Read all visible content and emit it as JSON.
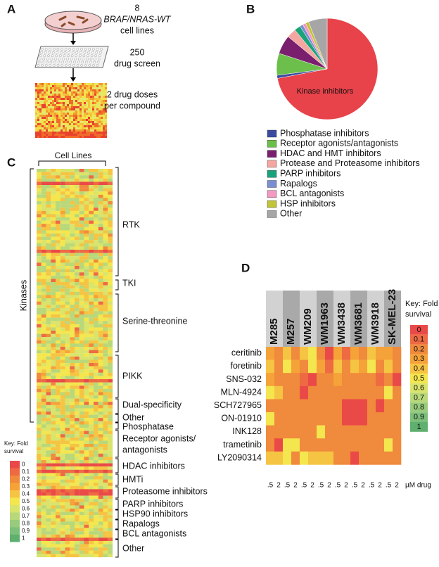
{
  "figure": {
    "panel_a": {
      "label": "A",
      "steps": [
        [
          "8",
          "BRAF/NRAS-WT",
          "cell lines"
        ],
        [
          "250",
          "drug screen"
        ],
        [
          "2 drug doses",
          "per compound"
        ]
      ]
    },
    "panel_b": {
      "label": "B"
    },
    "panel_c": {
      "label": "C",
      "columns_label": "Cell Lines",
      "kinases_label": "Kinases",
      "groups": [
        [
          "RTK"
        ],
        [
          "TKI"
        ],
        [
          "Serine-threonine"
        ],
        [
          "PIKK"
        ],
        [
          "Dual-specificity"
        ],
        [
          "Other"
        ],
        [
          "Phosphatase"
        ],
        [
          "Receptor agonists/",
          "antagonists"
        ],
        [
          "HDAC inhibitors"
        ],
        [
          "HMTi"
        ],
        [
          "Proteasome inhibitors"
        ],
        [
          "PARP inhibitors"
        ],
        [
          "HSP90 inhibitors"
        ],
        [
          "Rapalogs"
        ],
        [
          "BCL antagonists"
        ],
        [
          "Other"
        ]
      ]
    },
    "panel_d": {
      "label": "D"
    }
  },
  "chart_data": [
    {
      "type": "pie",
      "categories": [
        "Kinase inhibitors",
        "Phosphatase inhibitors",
        "Receptor agonists/antagonists",
        "HDAC and HMT inhibitors",
        "Protease and Proteasome inhibitors",
        "PARP inhibitors",
        "Rapalogs",
        "BCL antagonists",
        "HSP inhibitors",
        "Other"
      ],
      "values": [
        72,
        1,
        7,
        6,
        3,
        2,
        1,
        1,
        1,
        6
      ],
      "colors": [
        "#e8434a",
        "#3b4ba0",
        "#6cbf4a",
        "#7a1f6e",
        "#f4a7a0",
        "#1aa37a",
        "#7b8fd0",
        "#f29ac0",
        "#c2c43a",
        "#a6a6a6"
      ]
    },
    {
      "type": "heatmap",
      "columns": [
        "M285",
        "M257",
        "WM209",
        "WM1963",
        "WM3438",
        "WM3681",
        "WM3918",
        "SK-MEL-23"
      ],
      "sub_columns": [
        ".5",
        "2"
      ],
      "x_label": "µM drug",
      "rows": [
        "ceritinib",
        "foretinib",
        "SNS-032",
        "MLN-4924",
        "SCH727965",
        "ON-01910",
        "INK128",
        "trametinib",
        "LY2090314"
      ],
      "values": [
        [
          0.3,
          0.2,
          0.4,
          0.2,
          0.4,
          0.5,
          0.2,
          0,
          0.3,
          0.1,
          0.3,
          0.2,
          0.4,
          0.3,
          0.3,
          0.2
        ],
        [
          0.4,
          0.2,
          0.5,
          0.3,
          0.2,
          0.5,
          0.3,
          0.1,
          0.4,
          0.2,
          0.4,
          0.3,
          0.5,
          0.2,
          0.4,
          0.2
        ],
        [
          0.3,
          0.2,
          0.2,
          0.2,
          0.1,
          0,
          0.2,
          0.2,
          0.3,
          0.2,
          0.2,
          0.2,
          0.2,
          0.1,
          0.2,
          0
        ],
        [
          0.5,
          0.4,
          0.2,
          0.2,
          0,
          0.2,
          0.2,
          0.2,
          0.2,
          0.2,
          0.2,
          0.2,
          0.2,
          0.2,
          0.5,
          0.2
        ],
        [
          0.2,
          0.2,
          0.2,
          0.2,
          0.2,
          0.2,
          0.2,
          0.2,
          0.2,
          0,
          0,
          0,
          0.2,
          0,
          0.2,
          0.2
        ],
        [
          0.5,
          0.2,
          0.2,
          0.2,
          0.2,
          0.2,
          0.2,
          0.2,
          0.2,
          0,
          0,
          0,
          0.2,
          0.2,
          0.2,
          0.2
        ],
        [
          0.2,
          0.2,
          0.2,
          0.2,
          0.2,
          0.2,
          0.5,
          0.2,
          0.2,
          0.2,
          0.2,
          0.2,
          0.2,
          0.2,
          0.2,
          0.2
        ],
        [
          0.2,
          0,
          0.5,
          0.5,
          0.2,
          0.2,
          0.2,
          0.2,
          0.2,
          0.2,
          0.2,
          0.2,
          0.2,
          0.2,
          0.5,
          0.2
        ],
        [
          0.4,
          0.4,
          0.5,
          0.2,
          0.5,
          0.4,
          0.4,
          0.4,
          0.2,
          0.2,
          0,
          0.2,
          0.2,
          0.2,
          0.2,
          0.2
        ]
      ],
      "colorscale": {
        "title": [
          "Key: Fold",
          "survival"
        ],
        "ticks": [
          0,
          0.1,
          0.2,
          0.3,
          0.4,
          0.5,
          0.6,
          0.7,
          0.8,
          0.9,
          1
        ],
        "colors": [
          "#ea4a47",
          "#ee6a43",
          "#f08a3c",
          "#f5a238",
          "#f6c443",
          "#f4e64e",
          "#d9e46c",
          "#b8d87a",
          "#98cc7c",
          "#7cbf7a",
          "#5faf6e"
        ]
      }
    }
  ]
}
